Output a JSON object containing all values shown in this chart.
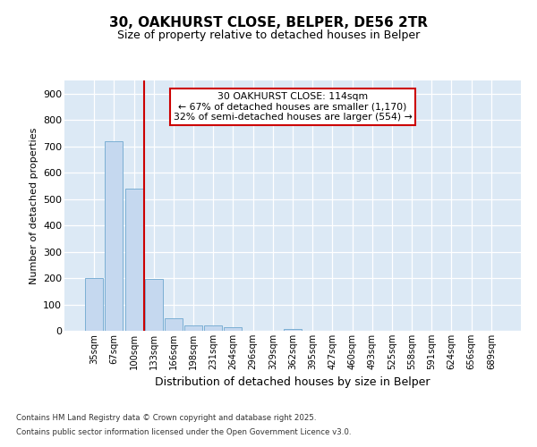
{
  "title_line1": "30, OAKHURST CLOSE, BELPER, DE56 2TR",
  "title_line2": "Size of property relative to detached houses in Belper",
  "xlabel": "Distribution of detached houses by size in Belper",
  "ylabel": "Number of detached properties",
  "categories": [
    "35sqm",
    "67sqm",
    "100sqm",
    "133sqm",
    "166sqm",
    "198sqm",
    "231sqm",
    "264sqm",
    "296sqm",
    "329sqm",
    "362sqm",
    "395sqm",
    "427sqm",
    "460sqm",
    "493sqm",
    "525sqm",
    "558sqm",
    "591sqm",
    "624sqm",
    "656sqm",
    "689sqm"
  ],
  "values": [
    200,
    720,
    540,
    196,
    46,
    22,
    22,
    14,
    0,
    0,
    8,
    0,
    0,
    0,
    0,
    0,
    0,
    0,
    0,
    0,
    0
  ],
  "bar_color": "#c5d8ef",
  "bar_edge_color": "#7bafd4",
  "vline_x": 2.5,
  "vline_color": "#cc0000",
  "annotation_line1": "30 OAKHURST CLOSE: 114sqm",
  "annotation_line2": "← 67% of detached houses are smaller (1,170)",
  "annotation_line3": "32% of semi-detached houses are larger (554) →",
  "annotation_box_facecolor": "#ffffff",
  "annotation_box_edgecolor": "#cc0000",
  "ylim": [
    0,
    950
  ],
  "yticks": [
    0,
    100,
    200,
    300,
    400,
    500,
    600,
    700,
    800,
    900
  ],
  "fig_facecolor": "#ffffff",
  "plot_facecolor": "#dce9f5",
  "grid_color": "#ffffff",
  "footer_line1": "Contains HM Land Registry data © Crown copyright and database right 2025.",
  "footer_line2": "Contains public sector information licensed under the Open Government Licence v3.0."
}
